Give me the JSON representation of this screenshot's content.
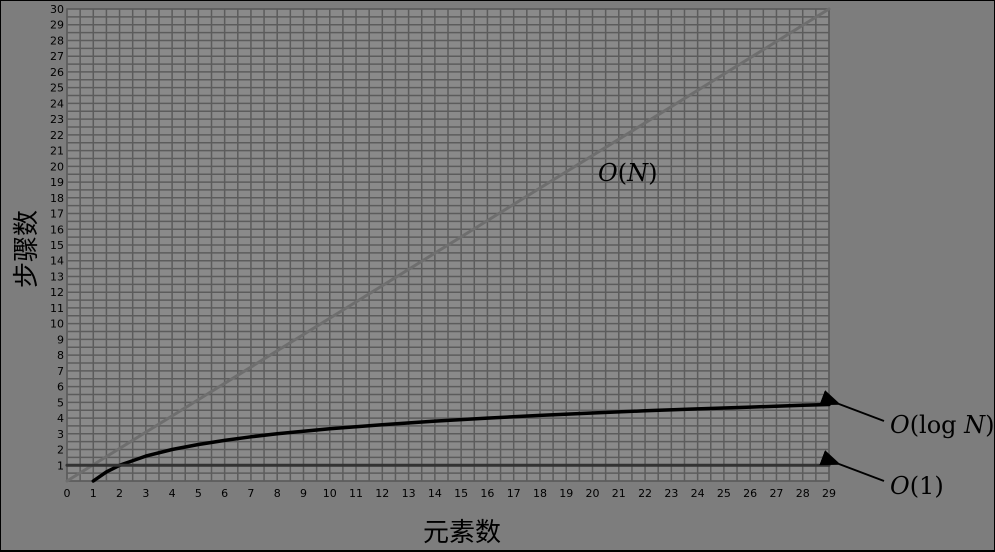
{
  "chart_data": {
    "type": "line",
    "xlabel": "元素数",
    "ylabel": "步骤数",
    "xlim": [
      0,
      29
    ],
    "ylim": [
      0,
      30
    ],
    "x_ticks": [
      0,
      1,
      2,
      3,
      4,
      5,
      6,
      7,
      8,
      9,
      10,
      11,
      12,
      13,
      14,
      15,
      16,
      17,
      18,
      19,
      20,
      21,
      22,
      23,
      24,
      25,
      26,
      27,
      28,
      29
    ],
    "y_ticks": [
      1,
      2,
      3,
      4,
      5,
      6,
      7,
      8,
      9,
      10,
      11,
      12,
      13,
      14,
      15,
      16,
      17,
      18,
      19,
      20,
      21,
      22,
      23,
      24,
      25,
      26,
      27,
      28,
      29,
      30
    ],
    "grid": true,
    "series": [
      {
        "name": "O(N)",
        "italic_part": "O",
        "label_tail": "(",
        "italic_var": "N",
        "label_end": ")",
        "color": "#6e6e6e",
        "x": [
          0,
          29
        ],
        "y": [
          0,
          30
        ]
      },
      {
        "name": "O(log N)",
        "italic_part": "O",
        "label_tail": "(log ",
        "italic_var": "N",
        "label_end": ")",
        "color": "#000000",
        "x": [
          1,
          1.5,
          2,
          3,
          4,
          5,
          6,
          7,
          8,
          10,
          12,
          14,
          16,
          18,
          20,
          22,
          24,
          26,
          28,
          29
        ],
        "y": [
          0,
          0.58,
          1,
          1.58,
          2,
          2.32,
          2.58,
          2.81,
          3,
          3.32,
          3.58,
          3.81,
          4,
          4.17,
          4.32,
          4.46,
          4.58,
          4.7,
          4.81,
          4.86
        ]
      },
      {
        "name": "O(1)",
        "italic_part": "O",
        "label_tail": "(1)",
        "italic_var": "",
        "label_end": "",
        "color": "#333333",
        "x": [
          0,
          29
        ],
        "y": [
          1,
          1
        ]
      }
    ]
  }
}
